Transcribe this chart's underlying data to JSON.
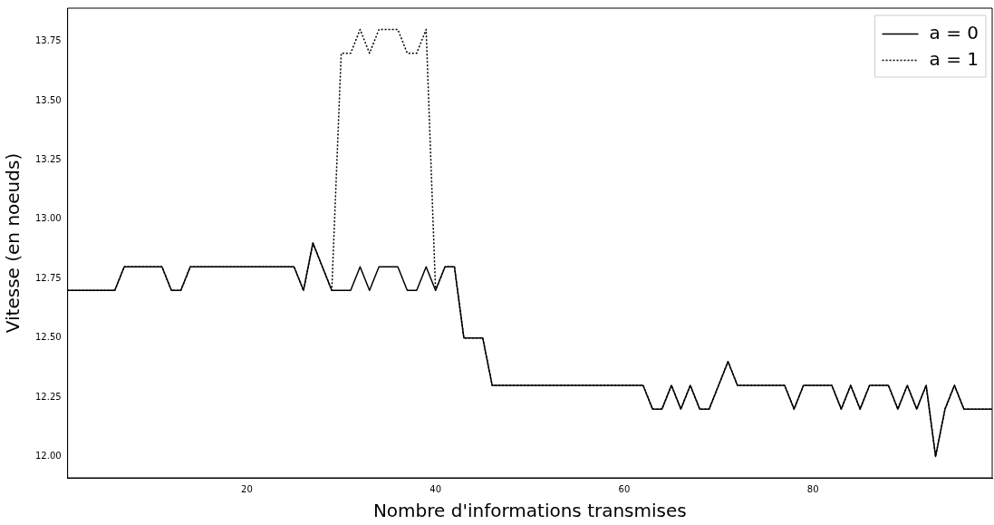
{
  "chart_data": {
    "type": "line",
    "xlabel": "Nombre d'informations transmises",
    "ylabel": "Vitesse (en noeuds)",
    "x": [
      1,
      2,
      3,
      4,
      5,
      6,
      7,
      8,
      9,
      10,
      11,
      12,
      13,
      14,
      15,
      16,
      17,
      18,
      19,
      20,
      21,
      22,
      23,
      24,
      25,
      26,
      27,
      28,
      29,
      30,
      31,
      32,
      33,
      34,
      35,
      36,
      37,
      38,
      39,
      40,
      41,
      42,
      43,
      44,
      45,
      46,
      47,
      48,
      49,
      50,
      51,
      52,
      53,
      54,
      55,
      56,
      57,
      58,
      59,
      60,
      61,
      62,
      63,
      64,
      65,
      66,
      67,
      68,
      69,
      70,
      71,
      72,
      73,
      74,
      75,
      76,
      77,
      78,
      79,
      80,
      81,
      82,
      83,
      84,
      85,
      86,
      87,
      88,
      89,
      90,
      91,
      92,
      93,
      94,
      95,
      96,
      97,
      98,
      99
    ],
    "series": [
      {
        "name": "a = 0",
        "color": "#000000",
        "line_style": "solid",
        "values": [
          12.7,
          12.7,
          12.7,
          12.7,
          12.7,
          12.7,
          12.8,
          12.8,
          12.8,
          12.8,
          12.8,
          12.7,
          12.7,
          12.8,
          12.8,
          12.8,
          12.8,
          12.8,
          12.8,
          12.8,
          12.8,
          12.8,
          12.8,
          12.8,
          12.8,
          12.7,
          12.9,
          12.8,
          12.7,
          12.7,
          12.7,
          12.8,
          12.7,
          12.8,
          12.8,
          12.8,
          12.7,
          12.7,
          12.8,
          12.7,
          12.8,
          12.8,
          12.5,
          12.5,
          12.5,
          12.3,
          12.3,
          12.3,
          12.3,
          12.3,
          12.3,
          12.3,
          12.3,
          12.3,
          12.3,
          12.3,
          12.3,
          12.3,
          12.3,
          12.3,
          12.3,
          12.3,
          12.2,
          12.2,
          12.3,
          12.2,
          12.3,
          12.2,
          12.2,
          12.3,
          12.4,
          12.3,
          12.3,
          12.3,
          12.3,
          12.3,
          12.3,
          12.2,
          12.3,
          12.3,
          12.3,
          12.3,
          12.2,
          12.3,
          12.2,
          12.3,
          12.3,
          12.3,
          12.2,
          12.3,
          12.2,
          12.3,
          12.0,
          12.2,
          12.3,
          12.2,
          12.2,
          12.2,
          12.2
        ]
      },
      {
        "name": "a = 1",
        "color": "#000000",
        "line_style": "dotted",
        "values": [
          12.7,
          12.7,
          12.7,
          12.7,
          12.7,
          12.7,
          12.8,
          12.8,
          12.8,
          12.8,
          12.8,
          12.7,
          12.7,
          12.8,
          12.8,
          12.8,
          12.8,
          12.8,
          12.8,
          12.8,
          12.8,
          12.8,
          12.8,
          12.8,
          12.8,
          12.7,
          12.9,
          12.8,
          12.7,
          13.7,
          13.7,
          13.8,
          13.7,
          13.8,
          13.8,
          13.8,
          13.7,
          13.7,
          13.8,
          12.7,
          12.8,
          12.8,
          12.5,
          12.5,
          12.5,
          12.3,
          12.3,
          12.3,
          12.3,
          12.3,
          12.3,
          12.3,
          12.3,
          12.3,
          12.3,
          12.3,
          12.3,
          12.3,
          12.3,
          12.3,
          12.3,
          12.3,
          12.2,
          12.2,
          12.3,
          12.2,
          12.3,
          12.2,
          12.2,
          12.3,
          12.4,
          12.3,
          12.3,
          12.3,
          12.3,
          12.3,
          12.3,
          12.2,
          12.3,
          12.3,
          12.3,
          12.3,
          12.2,
          12.3,
          12.2,
          12.3,
          12.3,
          12.3,
          12.2,
          12.3,
          12.2,
          12.3,
          12.0,
          12.2,
          12.3,
          12.2,
          12.2,
          12.2,
          12.2
        ]
      }
    ],
    "xlim": [
      1,
      99
    ],
    "xticks": [
      20,
      40,
      60,
      80
    ],
    "ylim": [
      11.91,
      13.89
    ],
    "yticks": [
      {
        "value": 12,
        "label": "12.00"
      },
      {
        "value": 12.25,
        "label": "12.25"
      },
      {
        "value": 12.5,
        "label": "12.50"
      },
      {
        "value": 12.75,
        "label": "12.75"
      },
      {
        "value": 13,
        "label": "13.00"
      },
      {
        "value": 13.25,
        "label": "13.25"
      },
      {
        "value": 13.5,
        "label": "13.50"
      },
      {
        "value": 13.75,
        "label": "13.75"
      }
    ],
    "grid": false,
    "legend": "top right",
    "marker": "none"
  }
}
